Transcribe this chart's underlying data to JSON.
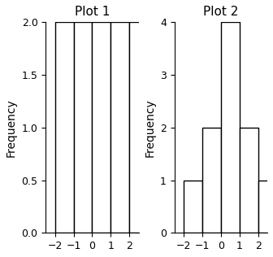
{
  "plot1": {
    "title": "Plot 1",
    "bar_edges": [
      -2,
      -1,
      0,
      1,
      2,
      3
    ],
    "bar_heights": [
      2,
      2,
      2,
      2,
      2
    ],
    "ylabel": "Frequency",
    "xlim": [
      -2.5,
      2.5
    ],
    "ylim": [
      0,
      2.0
    ],
    "yticks": [
      0.0,
      0.5,
      1.0,
      1.5,
      2.0
    ],
    "xticks": [
      -2,
      -1,
      0,
      1,
      2
    ]
  },
  "plot2": {
    "title": "Plot 2",
    "bar_edges": [
      -2,
      -1,
      0,
      1,
      2,
      3
    ],
    "bar_heights": [
      1,
      2,
      4,
      2,
      1
    ],
    "ylabel": "Frequency",
    "xlim": [
      -2.5,
      2.5
    ],
    "ylim": [
      0,
      4
    ],
    "yticks": [
      0,
      1,
      2,
      3,
      4
    ],
    "xticks": [
      -2,
      -1,
      0,
      1,
      2
    ]
  },
  "bg_color": "#ffffff",
  "bar_color": "#ffffff",
  "bar_edgecolor": "#000000",
  "title_fontsize": 11,
  "label_fontsize": 10,
  "tick_fontsize": 9
}
